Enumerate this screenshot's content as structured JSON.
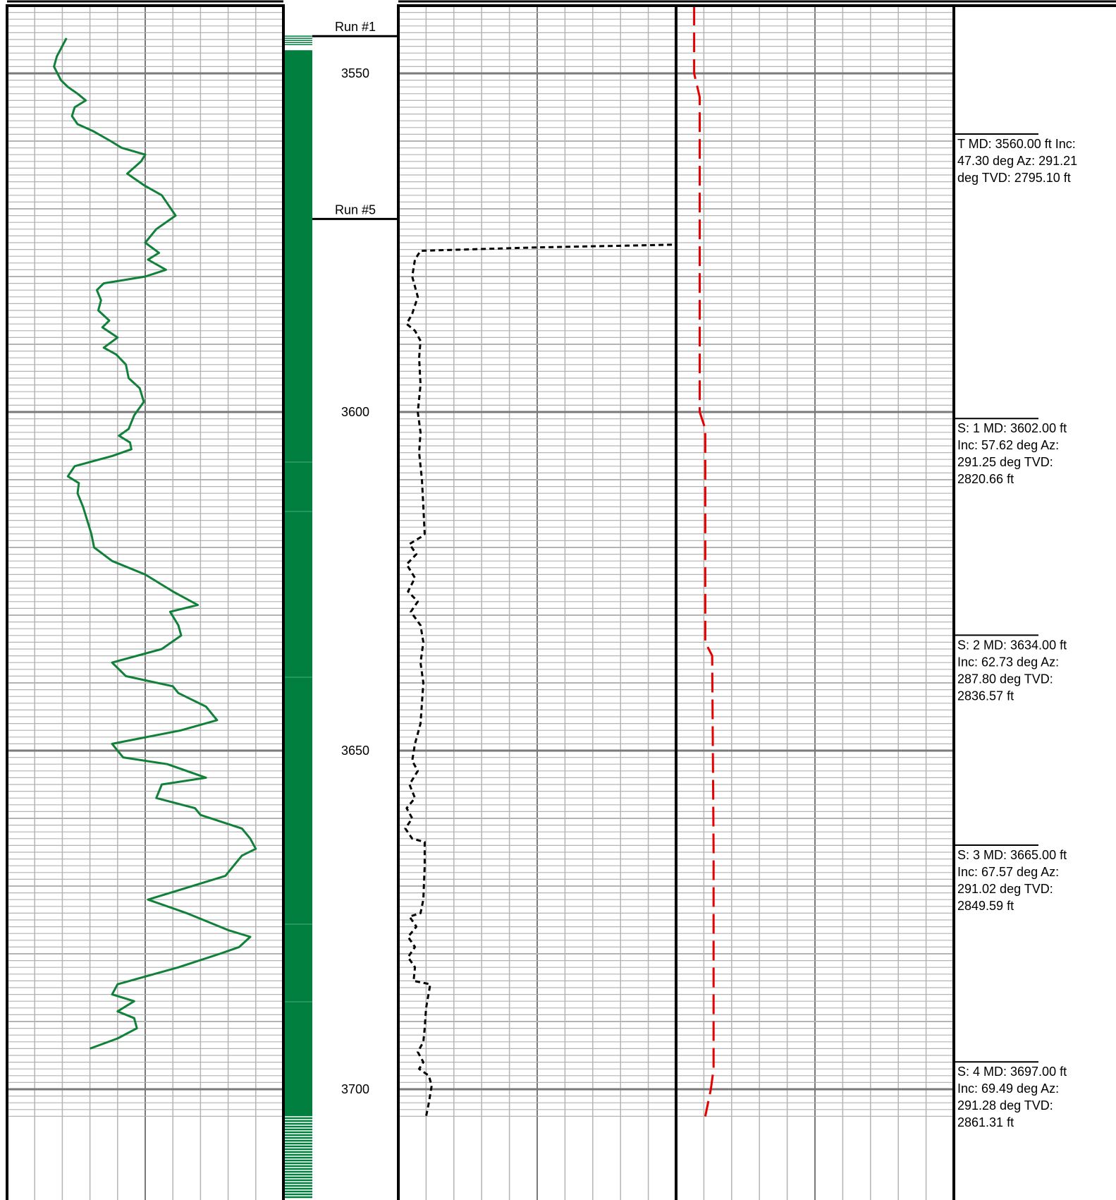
{
  "colors": {
    "gamma_curve": "#11813a",
    "green_fill": "#007f3f",
    "black_curve": "#000000",
    "red_curve": "#e60000",
    "grid_minor": "#b4b4b4",
    "grid_major": "#7a7a7a"
  },
  "chart_data": {
    "type": "line",
    "y_axis": {
      "quantity": "measured depth",
      "range": [
        3540,
        3704
      ],
      "inverted": true,
      "tick_labels": [
        3550,
        3600,
        3650,
        3700
      ]
    },
    "runs": [
      {
        "label": "Run #1",
        "depth": 3544.5
      },
      {
        "label": "Run #5",
        "depth": 3571.5
      }
    ],
    "grid": true,
    "tracks": [
      {
        "name": "track-1",
        "x_range": [
          0,
          100
        ],
        "series": [
          {
            "color": "#11813a",
            "points": [
              [
                21.5,
                3544.8
              ],
              [
                18.0,
                3547.5
              ],
              [
                17.0,
                3549.0
              ],
              [
                19.5,
                3551.0
              ],
              [
                22.0,
                3552.0
              ],
              [
                25.5,
                3553.0
              ],
              [
                28.5,
                3554.0
              ],
              [
                24.5,
                3555.0
              ],
              [
                23.5,
                3556.3
              ],
              [
                25.5,
                3557.5
              ],
              [
                31.0,
                3558.5
              ],
              [
                37.5,
                3560.0
              ],
              [
                41.5,
                3561.0
              ],
              [
                50.0,
                3562.0
              ],
              [
                48.5,
                3563.0
              ],
              [
                43.5,
                3564.8
              ],
              [
                49.5,
                3566.5
              ],
              [
                56.0,
                3568.0
              ],
              [
                61.0,
                3571.0
              ],
              [
                54.0,
                3573.0
              ],
              [
                50.0,
                3575.0
              ],
              [
                55.0,
                3576.5
              ],
              [
                51.0,
                3577.5
              ],
              [
                57.5,
                3579.0
              ],
              [
                50.0,
                3580.0
              ],
              [
                35.0,
                3581.0
              ],
              [
                32.5,
                3582.0
              ],
              [
                34.0,
                3583.5
              ],
              [
                33.0,
                3585.0
              ],
              [
                37.0,
                3586.5
              ],
              [
                34.5,
                3587.5
              ],
              [
                40.0,
                3589.0
              ],
              [
                35.0,
                3590.5
              ],
              [
                39.5,
                3591.5
              ],
              [
                43.0,
                3593.0
              ],
              [
                44.0,
                3595.0
              ],
              [
                48.0,
                3596.5
              ],
              [
                49.5,
                3598.5
              ],
              [
                46.0,
                3600.5
              ],
              [
                44.0,
                3602.5
              ],
              [
                40.5,
                3603.5
              ],
              [
                44.5,
                3604.5
              ],
              [
                45.0,
                3605.5
              ],
              [
                38.0,
                3606.5
              ],
              [
                24.5,
                3608.0
              ],
              [
                22.0,
                3609.5
              ],
              [
                26.0,
                3610.5
              ],
              [
                25.5,
                3612.0
              ],
              [
                27.5,
                3614.0
              ],
              [
                29.0,
                3616.0
              ],
              [
                30.5,
                3618.0
              ],
              [
                31.5,
                3620.0
              ],
              [
                38.0,
                3622.0
              ],
              [
                50.0,
                3624.0
              ],
              [
                60.0,
                3626.5
              ],
              [
                69.0,
                3628.5
              ],
              [
                59.0,
                3629.5
              ],
              [
                62.0,
                3631.5
              ],
              [
                63.0,
                3633.0
              ],
              [
                56.0,
                3635.0
              ],
              [
                38.0,
                3637.0
              ],
              [
                43.0,
                3639.0
              ],
              [
                60.0,
                3640.5
              ],
              [
                62.0,
                3641.5
              ],
              [
                72.0,
                3643.5
              ],
              [
                76.0,
                3645.5
              ],
              [
                63.0,
                3647.0
              ],
              [
                38.0,
                3649.0
              ],
              [
                42.0,
                3651.0
              ],
              [
                58.0,
                3652.0
              ],
              [
                72.0,
                3654.0
              ],
              [
                56.0,
                3655.0
              ],
              [
                54.0,
                3657.0
              ],
              [
                68.0,
                3658.5
              ],
              [
                70.0,
                3659.5
              ],
              [
                85.0,
                3661.5
              ],
              [
                88.0,
                3663.0
              ],
              [
                90.0,
                3664.5
              ],
              [
                85.0,
                3665.5
              ],
              [
                82.0,
                3667.0
              ],
              [
                79.0,
                3668.5
              ],
              [
                63.0,
                3670.5
              ],
              [
                51.0,
                3672.0
              ],
              [
                65.0,
                3674.0
              ],
              [
                80.0,
                3676.5
              ],
              [
                88.0,
                3677.5
              ],
              [
                84.0,
                3679.0
              ],
              [
                77.0,
                3680.0
              ],
              [
                62.0,
                3682.0
              ],
              [
                40.0,
                3684.5
              ],
              [
                38.0,
                3686.0
              ],
              [
                46.0,
                3687.0
              ],
              [
                40.0,
                3688.5
              ],
              [
                46.0,
                3689.5
              ],
              [
                47.0,
                3691.0
              ],
              [
                40.0,
                3692.5
              ],
              [
                30.0,
                3694.0
              ]
            ]
          }
        ]
      },
      {
        "name": "track-2",
        "x_range": [
          0,
          100
        ],
        "series": [
          {
            "color": "#000000",
            "dash": "short",
            "points": [
              [
                98.5,
                3575.3
              ],
              [
                50.0,
                3575.7
              ],
              [
                8.0,
                3576.2
              ],
              [
                6.0,
                3577.5
              ],
              [
                5.0,
                3580.0
              ],
              [
                7.0,
                3583.0
              ],
              [
                5.0,
                3585.5
              ],
              [
                3.0,
                3587.0
              ],
              [
                6.0,
                3588.0
              ],
              [
                8.0,
                3589.5
              ],
              [
                7.5,
                3592.0
              ],
              [
                8.0,
                3596.0
              ],
              [
                7.0,
                3600.0
              ],
              [
                8.0,
                3603.0
              ],
              [
                7.5,
                3606.0
              ],
              [
                8.5,
                3610.0
              ],
              [
                9.0,
                3614.0
              ],
              [
                9.5,
                3618.0
              ],
              [
                8.0,
                3618.5
              ],
              [
                4.0,
                3619.5
              ],
              [
                6.5,
                3621.0
              ],
              [
                3.0,
                3622.5
              ],
              [
                6.0,
                3624.5
              ],
              [
                3.5,
                3626.5
              ],
              [
                7.0,
                3628.0
              ],
              [
                4.5,
                3629.5
              ],
              [
                8.0,
                3631.5
              ],
              [
                9.0,
                3634.0
              ],
              [
                8.0,
                3637.0
              ],
              [
                9.0,
                3640.0
              ],
              [
                8.5,
                3643.0
              ],
              [
                8.0,
                3646.0
              ],
              [
                6.0,
                3649.0
              ],
              [
                5.0,
                3651.5
              ],
              [
                7.0,
                3653.0
              ],
              [
                4.0,
                3655.0
              ],
              [
                6.0,
                3657.0
              ],
              [
                3.0,
                3658.5
              ],
              [
                5.0,
                3660.0
              ],
              [
                2.5,
                3661.5
              ],
              [
                5.0,
                3663.0
              ],
              [
                9.5,
                3663.5
              ],
              [
                9.5,
                3667.0
              ],
              [
                9.0,
                3672.0
              ],
              [
                8.0,
                3674.0
              ],
              [
                4.0,
                3674.5
              ],
              [
                6.5,
                3676.0
              ],
              [
                3.5,
                3677.5
              ],
              [
                6.0,
                3679.0
              ],
              [
                3.5,
                3680.5
              ],
              [
                6.0,
                3682.0
              ],
              [
                5.5,
                3684.0
              ],
              [
                11.5,
                3684.5
              ],
              [
                10.0,
                3688.0
              ],
              [
                9.5,
                3691.0
              ],
              [
                9.0,
                3693.0
              ],
              [
                7.0,
                3694.5
              ],
              [
                9.0,
                3696.0
              ],
              [
                7.5,
                3697.0
              ],
              [
                11.0,
                3698.0
              ],
              [
                12.0,
                3699.5
              ],
              [
                11.0,
                3702.0
              ],
              [
                10.0,
                3704.0
              ]
            ]
          }
        ]
      },
      {
        "name": "track-3",
        "x_range": [
          0,
          100
        ],
        "series": [
          {
            "color": "#e60000",
            "dash": "long",
            "points": [
              [
                6.5,
                3540.0
              ],
              [
                6.5,
                3550.0
              ],
              [
                8.5,
                3553.5
              ],
              [
                8.5,
                3560.0
              ],
              [
                8.5,
                3600.0
              ],
              [
                10.5,
                3602.5
              ],
              [
                10.5,
                3634.0
              ],
              [
                13.0,
                3636.0
              ],
              [
                13.5,
                3665.0
              ],
              [
                13.5,
                3697.0
              ],
              [
                12.5,
                3700.0
              ],
              [
                10.5,
                3704.0
              ]
            ]
          }
        ]
      }
    ],
    "annotations": [
      {
        "depth": 3560.0,
        "lines": [
          "T  MD: 3560.00 ft Inc:",
          "47.30 deg Az: 291.21",
          "deg TVD: 2795.10 ft"
        ]
      },
      {
        "depth": 3602.0,
        "lines": [
          "S: 1  MD: 3602.00 ft",
          "Inc: 57.62 deg Az:",
          "291.25 deg TVD:",
          "2820.66 ft"
        ]
      },
      {
        "depth": 3634.0,
        "lines": [
          "S: 2  MD: 3634.00 ft",
          "Inc: 62.73 deg Az:",
          "287.80 deg TVD:",
          "2836.57 ft"
        ]
      },
      {
        "depth": 3665.0,
        "lines": [
          "S: 3  MD: 3665.00 ft",
          "Inc: 67.57 deg Az:",
          "291.02 deg TVD:",
          "2849.59 ft"
        ]
      },
      {
        "depth": 3697.0,
        "lines": [
          "S: 4  MD: 3697.00 ft",
          "Inc: 69.49 deg Az:",
          "291.28 deg TVD:",
          "2861.31 ft"
        ]
      }
    ]
  }
}
